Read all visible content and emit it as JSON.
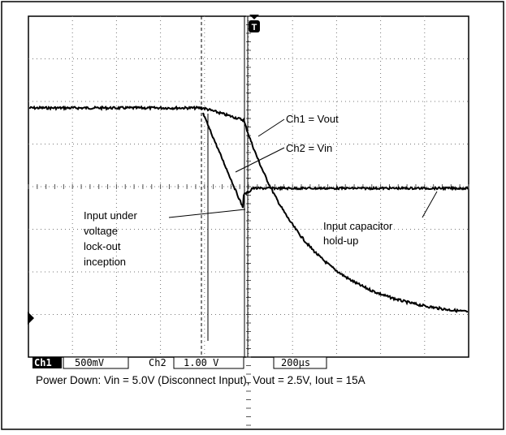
{
  "annotations": {
    "ch1": "Ch1 = Vout",
    "ch2": "Ch2 = Vin",
    "uvlo": [
      "Input under",
      "voltage",
      "lock-out",
      "inception"
    ],
    "holdup": [
      "Input capacitor",
      "hold-up"
    ]
  },
  "trigger": "T",
  "status": {
    "ch1": "Ch1",
    "ch1_scale": "500mV",
    "ch2": "Ch2",
    "ch2_scale": "1.00 V",
    "time_scale": "200µs"
  },
  "caption": "Power Down: Vin = 5.0V (Disconnect Input), Vout = 2.5V, Iout = 15A"
}
